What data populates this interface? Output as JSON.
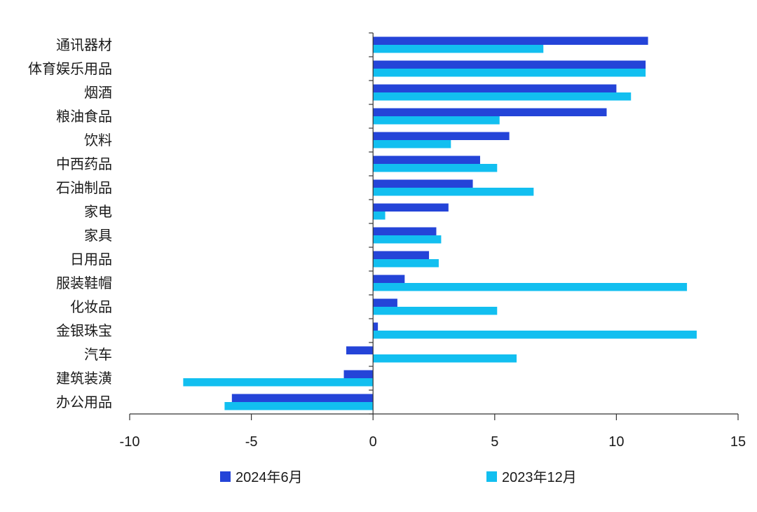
{
  "chart_data": {
    "type": "bar",
    "orientation": "horizontal",
    "categories": [
      "通讯器材",
      "体育娱乐用品",
      "烟酒",
      "粮油食品",
      "饮料",
      "中西药品",
      "石油制品",
      "家电",
      "家具",
      "日用品",
      "服装鞋帽",
      "化妆品",
      "金银珠宝",
      "汽车",
      "建筑装潢",
      "办公用品"
    ],
    "series": [
      {
        "name": "2024年6月",
        "color": "#2444d8",
        "values": [
          11.3,
          11.2,
          10.0,
          9.6,
          5.6,
          4.4,
          4.1,
          3.1,
          2.6,
          2.3,
          1.3,
          1.0,
          0.2,
          -1.1,
          -1.2,
          -5.8
        ]
      },
      {
        "name": "2023年12月",
        "color": "#12bff0",
        "values": [
          7.0,
          11.2,
          10.6,
          5.2,
          3.2,
          5.1,
          6.6,
          0.5,
          2.8,
          2.7,
          12.9,
          5.1,
          13.3,
          5.9,
          -7.8,
          -6.1
        ]
      }
    ],
    "xlim": [
      -10,
      15
    ],
    "xticks": [
      "-10",
      "-5",
      "0",
      "5",
      "10",
      "15"
    ],
    "grid": false,
    "legend_position": "bottom"
  }
}
